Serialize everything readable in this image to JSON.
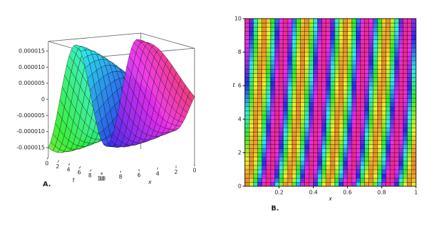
{
  "chart_data": [
    {
      "type": "surface",
      "panel_label": "A.",
      "xlabel": "x",
      "ylabel": "t",
      "xlim": [
        0,
        10
      ],
      "xticks": [
        10,
        8,
        6,
        4,
        2,
        0
      ],
      "ylim": [
        0,
        10
      ],
      "yticks": [
        0,
        2,
        4,
        6,
        8,
        10
      ],
      "zlim": [
        -1.8e-05,
        1.8e-05
      ],
      "zticks": [
        {
          "value": 1.5e-05,
          "label": "0.000015"
        },
        {
          "value": 1e-05,
          "label": "0.000010"
        },
        {
          "value": 5e-06,
          "label": "0.000005"
        },
        0,
        {
          "value": -5e-06,
          "label": "-0.000005"
        },
        {
          "value": -1e-05,
          "label": "-0.000010"
        },
        {
          "value": -1.5e-05,
          "label": "-0.000015"
        }
      ]
    },
    {
      "type": "density",
      "panel_label": "B.",
      "xlabel": "x",
      "ylabel": "t",
      "xlim": [
        0,
        1
      ],
      "xticks": [
        0.2,
        0.4,
        0.6,
        0.8,
        1
      ],
      "ylim": [
        0,
        10
      ],
      "yticks": [
        0,
        2,
        4,
        6,
        8,
        10
      ]
    }
  ]
}
